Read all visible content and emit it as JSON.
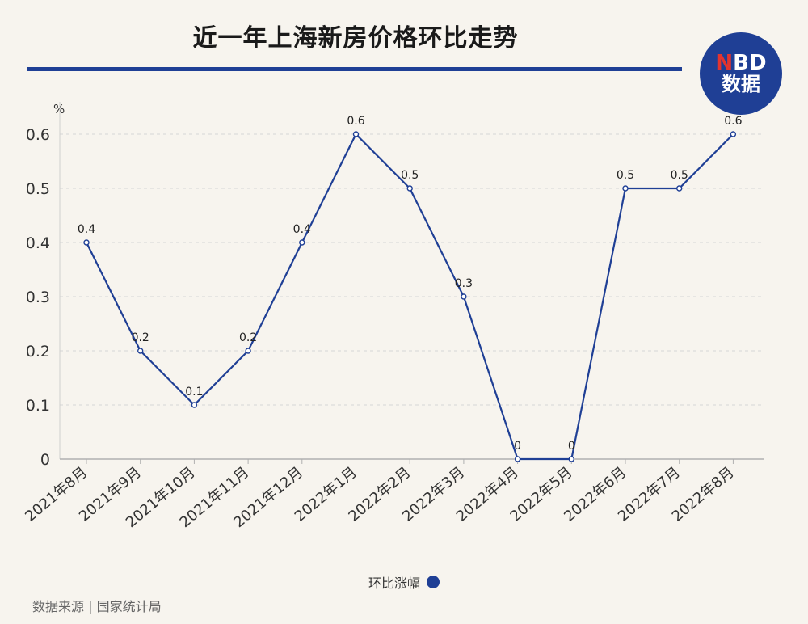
{
  "header": {
    "title": "近一年上海新房价格环比走势",
    "logo_line1_n": "N",
    "logo_line1_rest": "BD",
    "logo_line2": "数据"
  },
  "colors": {
    "series": "#1f3f95",
    "accent": "#e3342f",
    "background": "#f7f4ee"
  },
  "chart_data": {
    "type": "line",
    "unit_label": "%",
    "categories": [
      "2021年8月",
      "2021年9月",
      "2021年10月",
      "2021年11月",
      "2021年12月",
      "2022年1月",
      "2022年2月",
      "2022年3月",
      "2022年4月",
      "2022年5月",
      "2022年6月",
      "2022年7月",
      "2022年8月"
    ],
    "series": [
      {
        "name": "环比涨幅",
        "values": [
          0.4,
          0.2,
          0.1,
          0.2,
          0.4,
          0.6,
          0.5,
          0.3,
          0,
          0,
          0.5,
          0.5,
          0.6
        ]
      }
    ],
    "ylim": [
      0,
      0.6
    ],
    "yticks": [
      "0",
      "0.1",
      "0.2",
      "0.3",
      "0.4",
      "0.5",
      "0.6"
    ],
    "grid": true,
    "legend_position": "bottom-center"
  },
  "legend": {
    "label": "环比涨幅"
  },
  "footer": {
    "source": "数据来源 | 国家统计局"
  }
}
